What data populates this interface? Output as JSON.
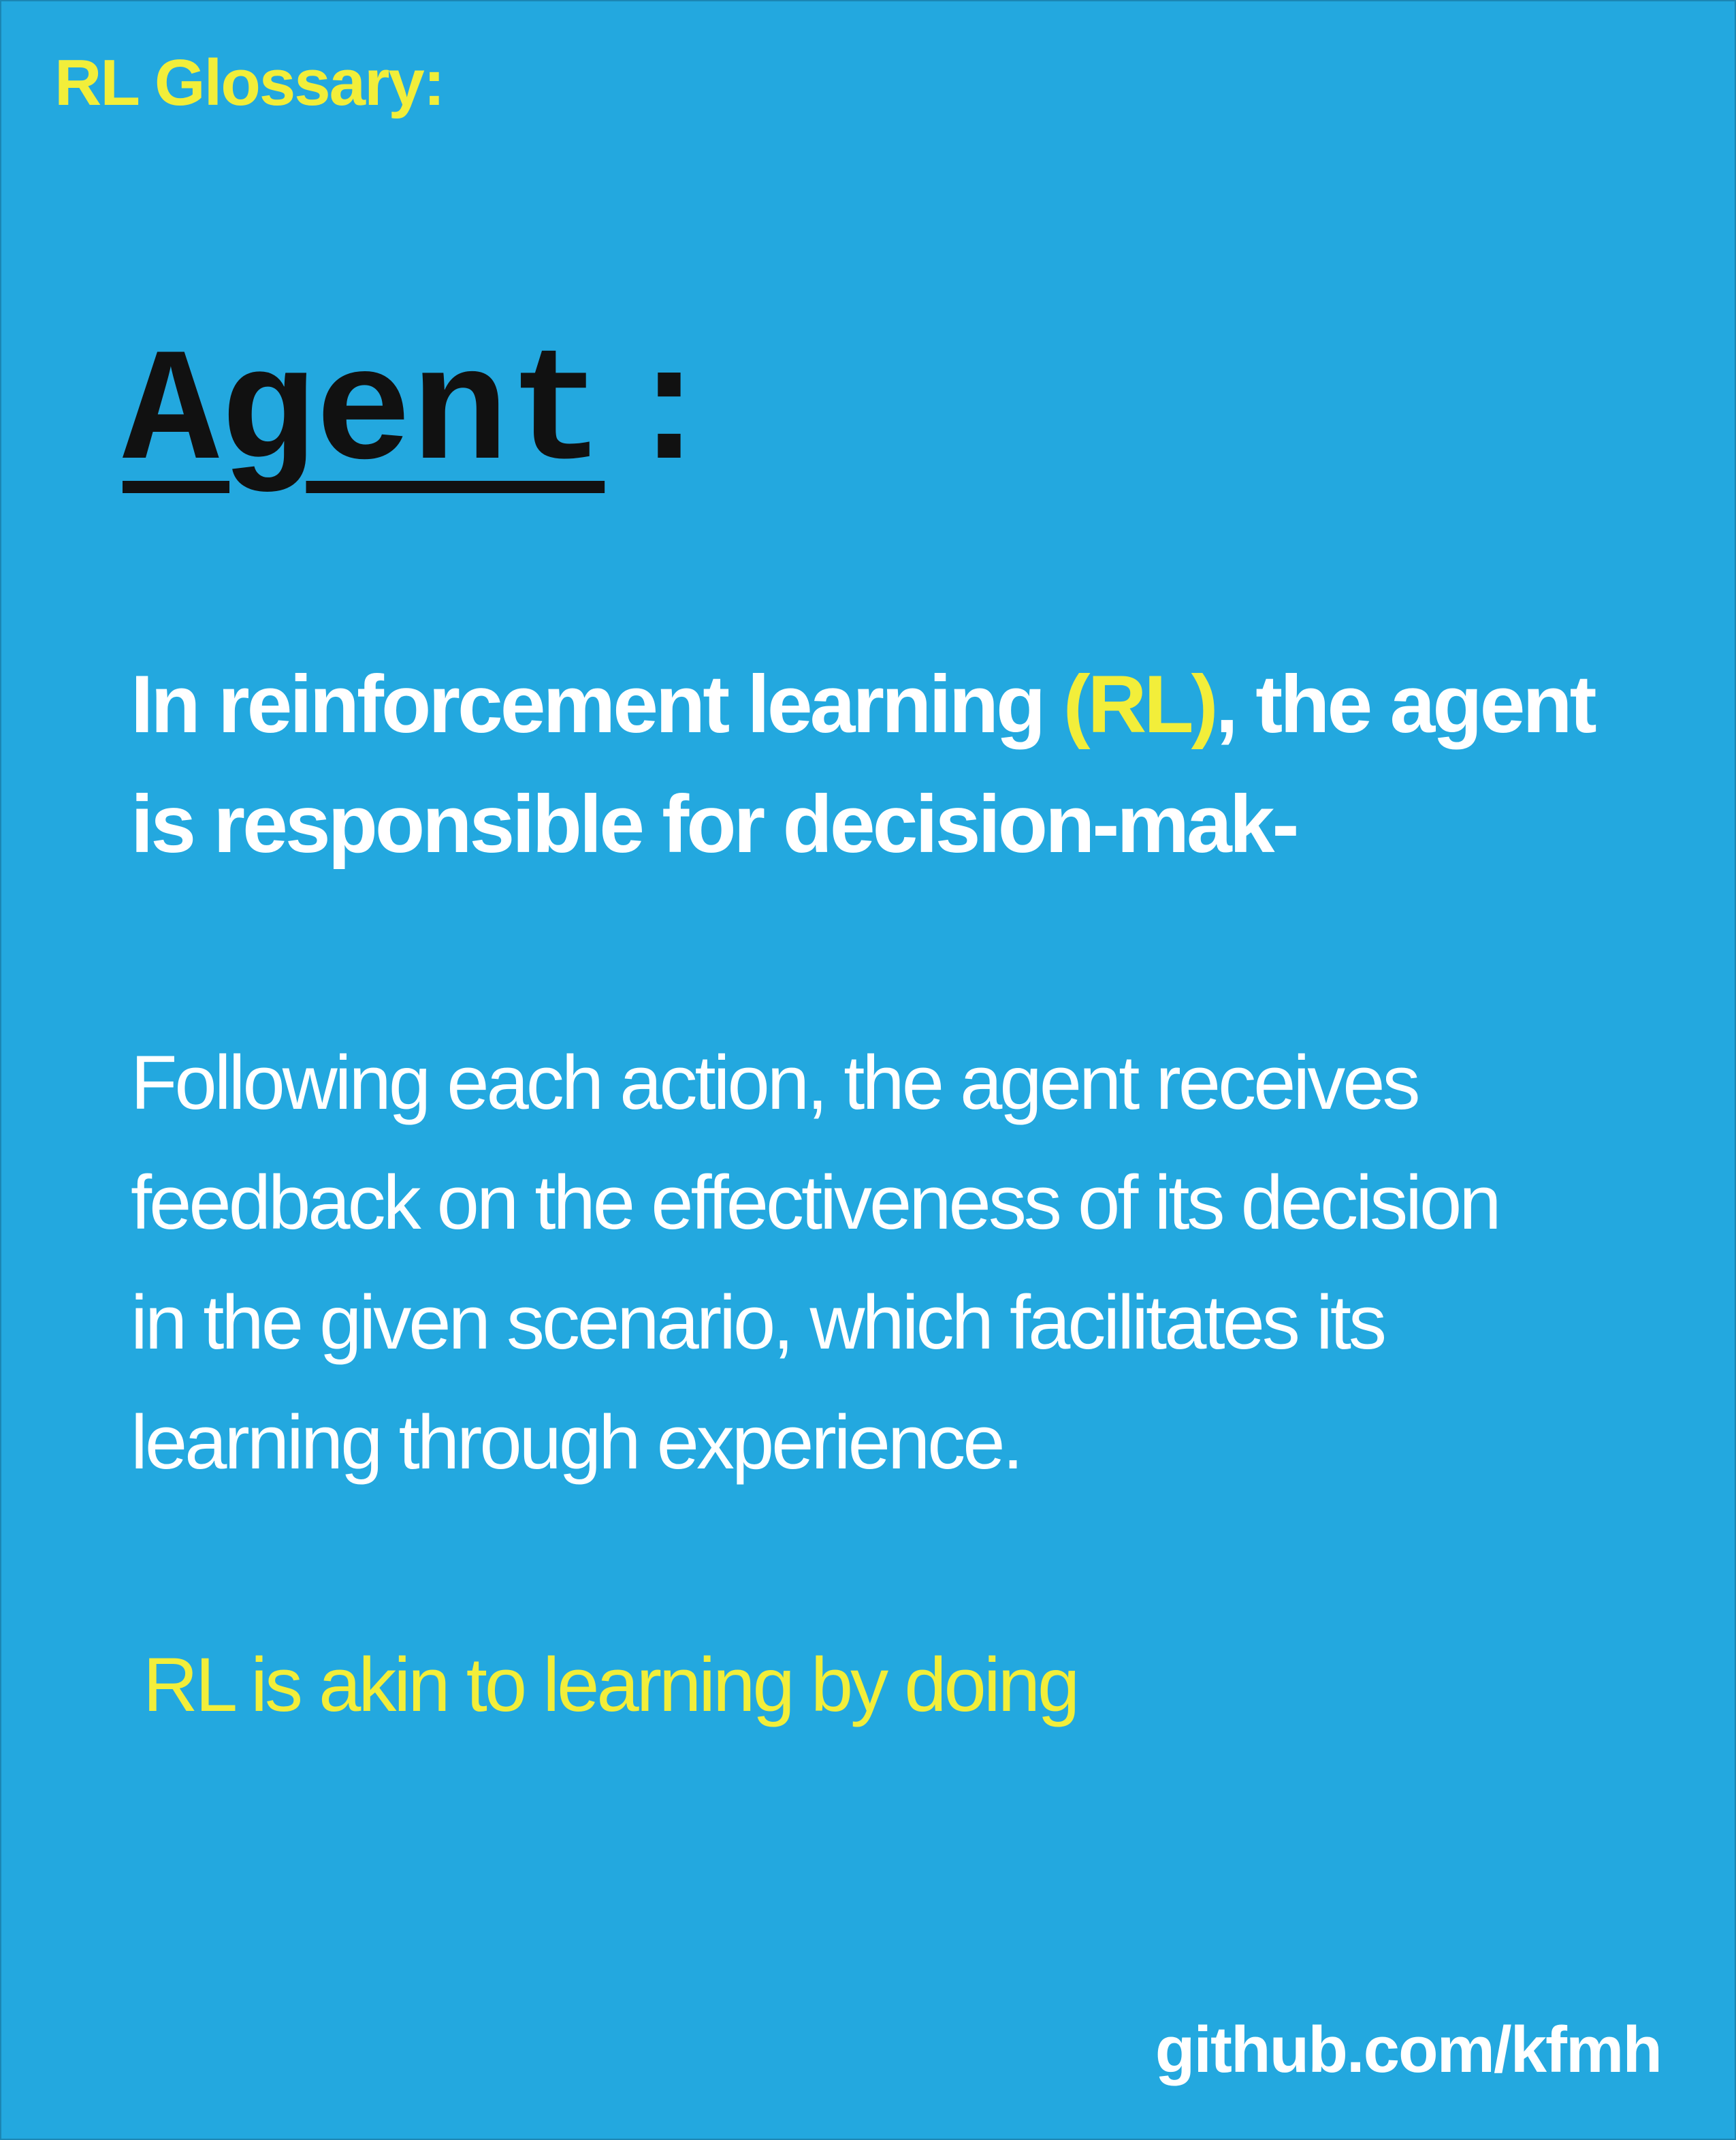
{
  "header": {
    "title": "RL Glossary:"
  },
  "term": {
    "word": "Agent",
    "colon": ":"
  },
  "lead": {
    "part1": "In reinforcement learning ",
    "accent": "(RL)",
    "part2": ", the agent is responsible for decision-mak-"
  },
  "body": {
    "line1": "Following each action, the agent receives",
    "line2": "feedback on the effectiveness of its decision",
    "line3": "in the given scenario, which facilitates its",
    "line4": "learning through experience."
  },
  "tagline": "RL is akin to learning by doing",
  "footer": {
    "link": "github.com/kfmh"
  },
  "colors": {
    "background": "#23a8df",
    "accent": "#f2ee3a",
    "text": "#ffffff",
    "term": "#111111"
  }
}
